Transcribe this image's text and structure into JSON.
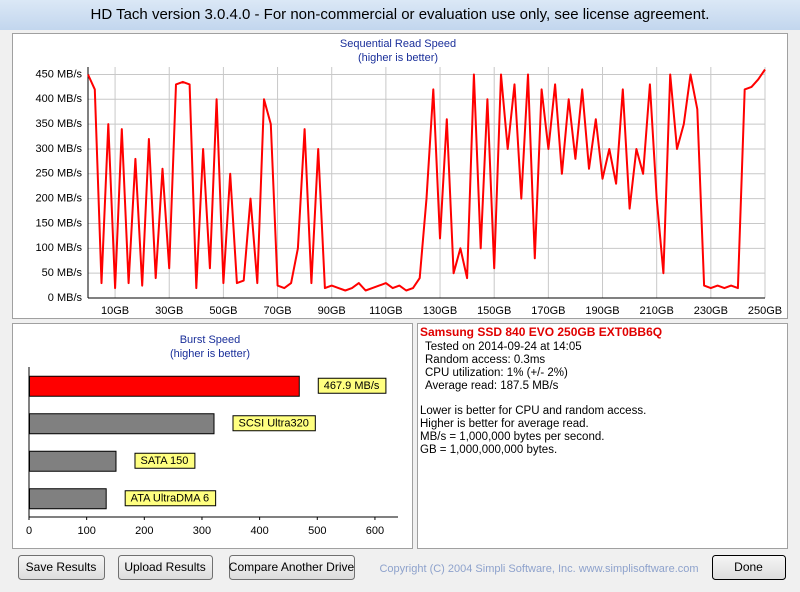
{
  "window": {
    "title": "HD Tach version 3.0.4.0  - For non-commercial or evaluation use only, see license agreement."
  },
  "chart_data": [
    {
      "type": "line",
      "title": "Sequential Read Speed",
      "subtitle": "(higher is better)",
      "color": "#ff0000",
      "grid": true,
      "xlim": [
        0,
        250
      ],
      "ylim": [
        0,
        465
      ],
      "xticks": [
        {
          "value": 10,
          "label": "10GB"
        },
        {
          "value": 30,
          "label": "30GB"
        },
        {
          "value": 50,
          "label": "50GB"
        },
        {
          "value": 70,
          "label": "70GB"
        },
        {
          "value": 90,
          "label": "90GB"
        },
        {
          "value": 110,
          "label": "110GB"
        },
        {
          "value": 130,
          "label": "130GB"
        },
        {
          "value": 150,
          "label": "150GB"
        },
        {
          "value": 170,
          "label": "170GB"
        },
        {
          "value": 190,
          "label": "190GB"
        },
        {
          "value": 210,
          "label": "210GB"
        },
        {
          "value": 230,
          "label": "230GB"
        },
        {
          "value": 250,
          "label": "250GB"
        }
      ],
      "yticks": [
        {
          "value": 0,
          "label": "0 MB/s"
        },
        {
          "value": 50,
          "label": "50 MB/s"
        },
        {
          "value": 100,
          "label": "100 MB/s"
        },
        {
          "value": 150,
          "label": "150 MB/s"
        },
        {
          "value": 200,
          "label": "200 MB/s"
        },
        {
          "value": 250,
          "label": "250 MB/s"
        },
        {
          "value": 300,
          "label": "300 MB/s"
        },
        {
          "value": 350,
          "label": "350 MB/s"
        },
        {
          "value": 400,
          "label": "400 MB/s"
        },
        {
          "value": 450,
          "label": "450 MB/s"
        }
      ],
      "x": [
        0,
        2.5,
        5,
        7.5,
        10,
        12.5,
        15,
        17.5,
        20,
        22.5,
        25,
        27.5,
        30,
        32.5,
        35,
        37.5,
        40,
        42.5,
        45,
        47.5,
        50,
        52.5,
        55,
        57.5,
        60,
        62.5,
        65,
        67.5,
        70,
        72.5,
        75,
        77.5,
        80,
        82.5,
        85,
        87.5,
        90,
        92.5,
        95,
        97.5,
        100,
        102.5,
        105,
        107.5,
        110,
        112.5,
        115,
        117.5,
        120,
        122.5,
        125,
        127.5,
        130,
        132.5,
        135,
        137.5,
        140,
        142.5,
        145,
        147.5,
        150,
        152.5,
        155,
        157.5,
        160,
        162.5,
        165,
        167.5,
        170,
        172.5,
        175,
        177.5,
        180,
        182.5,
        185,
        187.5,
        190,
        192.5,
        195,
        197.5,
        200,
        202.5,
        205,
        207.5,
        210,
        212.5,
        215,
        217.5,
        220,
        222.5,
        225,
        227.5,
        230,
        232.5,
        235,
        237.5,
        240,
        242.5,
        245,
        247.5,
        250
      ],
      "values": [
        450,
        420,
        30,
        350,
        20,
        340,
        30,
        280,
        25,
        320,
        40,
        260,
        60,
        430,
        435,
        430,
        20,
        300,
        60,
        400,
        30,
        250,
        30,
        35,
        200,
        30,
        400,
        350,
        25,
        20,
        30,
        100,
        340,
        30,
        300,
        20,
        25,
        20,
        15,
        20,
        30,
        15,
        20,
        25,
        30,
        20,
        25,
        15,
        20,
        40,
        200,
        420,
        120,
        360,
        50,
        100,
        40,
        450,
        100,
        400,
        60,
        450,
        300,
        430,
        200,
        450,
        80,
        420,
        300,
        430,
        250,
        400,
        280,
        420,
        260,
        360,
        240,
        300,
        230,
        420,
        180,
        300,
        250,
        430,
        200,
        50,
        450,
        300,
        350,
        450,
        380,
        25,
        20,
        25,
        20,
        25,
        20,
        420,
        425,
        440,
        460
      ]
    },
    {
      "type": "hbar",
      "title": "Burst Speed",
      "subtitle": "(higher is better)",
      "categories": [
        null,
        "SCSI Ultra320",
        "SATA 150",
        "ATA UltraDMA 6"
      ],
      "values": [
        467.9,
        320,
        150,
        133
      ],
      "value_labels": [
        "467.9 MB/s",
        null,
        null,
        null
      ],
      "colors": [
        "#ff0000",
        "#808080",
        "#808080",
        "#808080"
      ],
      "xlim": [
        0,
        640
      ],
      "xticks": [
        0,
        100,
        200,
        300,
        400,
        500,
        600
      ]
    }
  ],
  "info": {
    "heading": "Samsung SSD 840 EVO 250GB EXT0BB6Q",
    "details": [
      "Tested on 2014-09-24 at 14:05",
      "Random access: 0.3ms",
      "CPU utilization: 1% (+/- 2%)",
      "Average read: 187.5 MB/s"
    ],
    "notes": [
      "Lower is better for CPU and random access.",
      "Higher is better for average read.",
      "MB/s = 1,000,000 bytes per second.",
      "GB = 1,000,000,000 bytes."
    ]
  },
  "buttons": [
    "Save Results",
    "Upload Results",
    "Compare Another Drive",
    "Done"
  ],
  "copyright": "Copyright (C) 2004 Simpli Software, Inc. www.simplisoftware.com"
}
